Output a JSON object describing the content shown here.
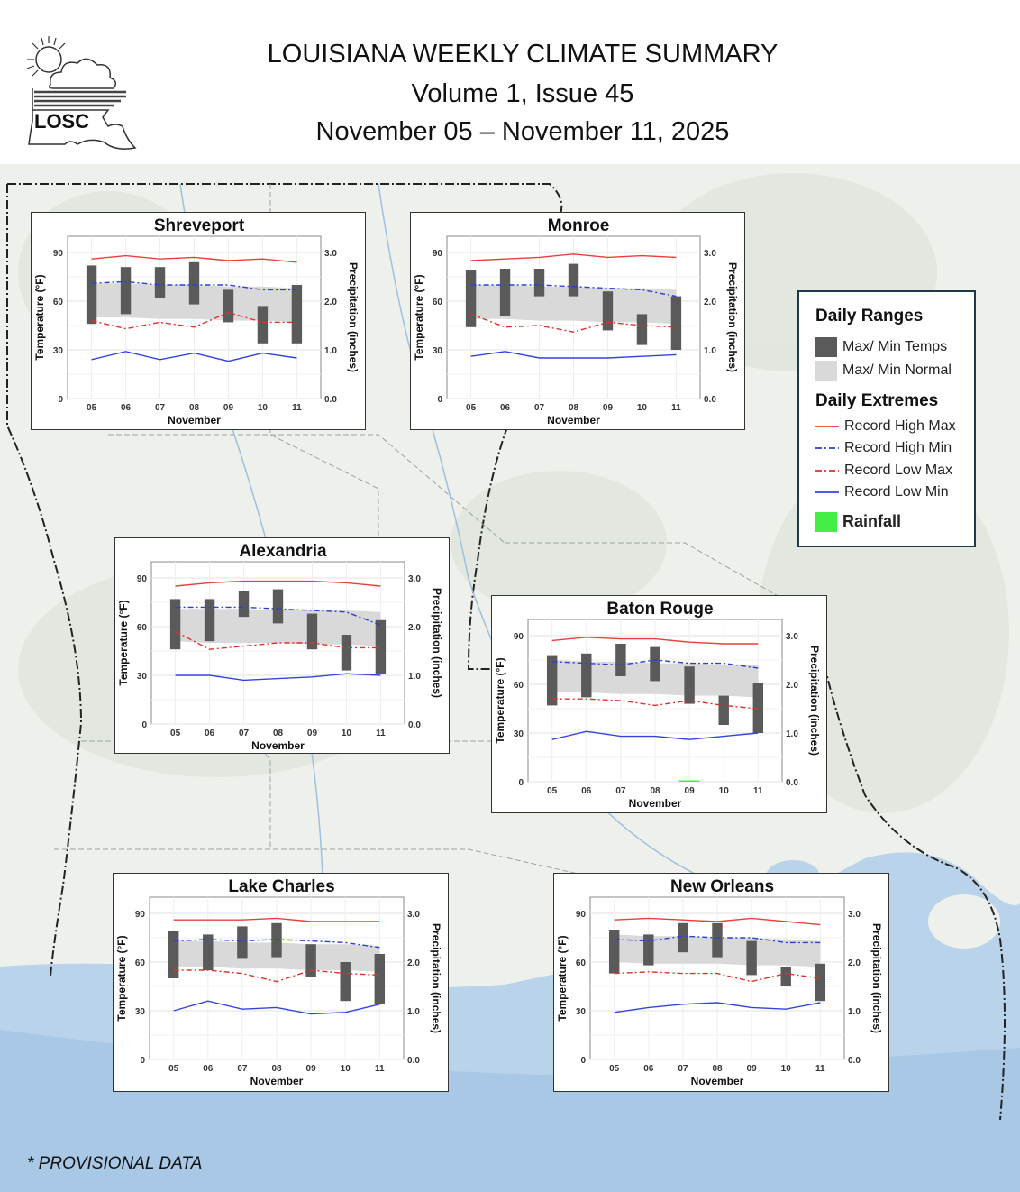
{
  "header": {
    "title": "LOUISIANA WEEKLY CLIMATE SUMMARY",
    "volume": "Volume 1, Issue 45",
    "dates": "November 05 – November 11, 2025",
    "logo_text": "LOSC"
  },
  "legend": {
    "ranges_heading": "Daily Ranges",
    "maxmin_temps": "Max/ Min Temps",
    "maxmin_normal": "Max/ Min Normal",
    "extremes_heading": "Daily Extremes",
    "record_high_max": "Record High Max",
    "record_high_min": "Record High Min",
    "record_low_max": "Record Low Max",
    "record_low_min": "Record Low Min",
    "rainfall": "Rainfall"
  },
  "colors": {
    "temp_bar": "#5a5a5a",
    "normal_band": "#d9d9d9",
    "record_high_max": "#e8403a",
    "record_high_min": "#2c3fd6",
    "record_low_max": "#e0302a",
    "record_low_min": "#3344dd",
    "rainfall": "#44ee44"
  },
  "note": "* PROVISIONAL DATA",
  "chart_data": [
    {
      "type": "bar",
      "title": "Shreveport",
      "xlabel": "November",
      "ylabel": "Temperature (°F)",
      "y2label": "Precipitation (inches)",
      "ylim": [
        0,
        100
      ],
      "y2lim": [
        0,
        3.33
      ],
      "yticks": [
        "0",
        "30",
        "60",
        "90"
      ],
      "y2ticks": [
        "0.0",
        "1.0",
        "2.0",
        "3.0"
      ],
      "categories": [
        "05",
        "06",
        "07",
        "08",
        "09",
        "10",
        "11"
      ],
      "max_temp": [
        82,
        81,
        81,
        84,
        67,
        57,
        70
      ],
      "min_temp": [
        46,
        52,
        62,
        58,
        47,
        34,
        34
      ],
      "normal_max": [
        71,
        71,
        70,
        70,
        69,
        69,
        68
      ],
      "normal_min": [
        50,
        50,
        49,
        49,
        48,
        48,
        47
      ],
      "record_high_max": [
        86,
        88,
        86,
        87,
        85,
        86,
        84
      ],
      "record_high_min": [
        71,
        72,
        70,
        70,
        70,
        67,
        67
      ],
      "record_low_max": [
        48,
        43,
        47,
        44,
        53,
        47,
        47
      ],
      "record_low_min": [
        24,
        29,
        24,
        28,
        23,
        28,
        25
      ],
      "precip": [
        0,
        0,
        0,
        0,
        0,
        0,
        0
      ]
    },
    {
      "type": "bar",
      "title": "Monroe",
      "xlabel": "November",
      "ylabel": "Temperature (°F)",
      "y2label": "Precipitation (inches)",
      "ylim": [
        0,
        100
      ],
      "y2lim": [
        0,
        3.33
      ],
      "yticks": [
        "0",
        "30",
        "60",
        "90"
      ],
      "y2ticks": [
        "0.0",
        "1.0",
        "2.0",
        "3.0"
      ],
      "categories": [
        "05",
        "06",
        "07",
        "08",
        "09",
        "10",
        "11"
      ],
      "max_temp": [
        79,
        80,
        80,
        83,
        66,
        52,
        63
      ],
      "min_temp": [
        44,
        51,
        63,
        63,
        42,
        33,
        30
      ],
      "normal_max": [
        70,
        70,
        69,
        69,
        68,
        68,
        67
      ],
      "normal_min": [
        49,
        49,
        48,
        48,
        47,
        47,
        46
      ],
      "record_high_max": [
        85,
        86,
        87,
        89,
        87,
        88,
        87
      ],
      "record_high_min": [
        70,
        70,
        70,
        69,
        68,
        67,
        63
      ],
      "record_low_max": [
        52,
        44,
        45,
        41,
        47,
        45,
        44
      ],
      "record_low_min": [
        26,
        29,
        25,
        25,
        25,
        26,
        27
      ],
      "precip": [
        0,
        0,
        0,
        0,
        0,
        0,
        0
      ]
    },
    {
      "type": "bar",
      "title": "Alexandria",
      "xlabel": "November",
      "ylabel": "Temperature (°F)",
      "y2label": "Precipitation (inches)",
      "ylim": [
        0,
        100
      ],
      "y2lim": [
        0,
        3.33
      ],
      "yticks": [
        "0",
        "30",
        "60",
        "90"
      ],
      "y2ticks": [
        "0.0",
        "1.0",
        "2.0",
        "3.0"
      ],
      "categories": [
        "05",
        "06",
        "07",
        "08",
        "09",
        "10",
        "11"
      ],
      "max_temp": [
        77,
        77,
        82,
        83,
        68,
        55,
        64
      ],
      "min_temp": [
        46,
        51,
        66,
        62,
        46,
        33,
        31
      ],
      "normal_max": [
        71,
        71,
        71,
        70,
        70,
        70,
        69
      ],
      "normal_min": [
        51,
        50,
        50,
        50,
        49,
        49,
        48
      ],
      "record_high_max": [
        85,
        87,
        88,
        88,
        88,
        87,
        85
      ],
      "record_high_min": [
        72,
        72,
        72,
        71,
        70,
        69,
        61
      ],
      "record_low_max": [
        57,
        46,
        48,
        50,
        50,
        47,
        47
      ],
      "record_low_min": [
        30,
        30,
        27,
        28,
        29,
        31,
        30
      ],
      "precip": [
        0,
        0,
        0,
        0,
        0,
        0,
        0
      ]
    },
    {
      "type": "bar",
      "title": "Baton Rouge",
      "xlabel": "November",
      "ylabel": "Temperature (°F)",
      "y2label": "Precipitation (inches)",
      "ylim": [
        0,
        100
      ],
      "y2lim": [
        0,
        3.33
      ],
      "yticks": [
        "0",
        "30",
        "60",
        "90"
      ],
      "y2ticks": [
        "0.0",
        "1.0",
        "2.0",
        "3.0"
      ],
      "categories": [
        "05",
        "06",
        "07",
        "08",
        "09",
        "10",
        "11"
      ],
      "max_temp": [
        78,
        79,
        85,
        83,
        71,
        53,
        61
      ],
      "min_temp": [
        47,
        52,
        65,
        62,
        48,
        35,
        30
      ],
      "normal_max": [
        75,
        74,
        74,
        73,
        73,
        72,
        72
      ],
      "normal_min": [
        55,
        55,
        54,
        54,
        53,
        53,
        52
      ],
      "record_high_max": [
        87,
        89,
        88,
        88,
        86,
        85,
        85
      ],
      "record_high_min": [
        74,
        73,
        72,
        75,
        73,
        73,
        70
      ],
      "record_low_max": [
        51,
        51,
        50,
        47,
        50,
        47,
        45
      ],
      "record_low_min": [
        26,
        31,
        28,
        28,
        26,
        28,
        30
      ],
      "precip": [
        0,
        0,
        0,
        0,
        0.01,
        0,
        0
      ]
    },
    {
      "type": "bar",
      "title": "Lake Charles",
      "xlabel": "November",
      "ylabel": "Temperature (°F)",
      "y2label": "Precipitation (inches)",
      "ylim": [
        0,
        100
      ],
      "y2lim": [
        0,
        3.33
      ],
      "yticks": [
        "0",
        "30",
        "60",
        "90"
      ],
      "y2ticks": [
        "0.0",
        "1.0",
        "2.0",
        "3.0"
      ],
      "categories": [
        "05",
        "06",
        "07",
        "08",
        "09",
        "10",
        "11"
      ],
      "max_temp": [
        79,
        77,
        82,
        84,
        71,
        60,
        65
      ],
      "min_temp": [
        50,
        55,
        62,
        63,
        51,
        36,
        34
      ],
      "normal_max": [
        73,
        73,
        72,
        72,
        71,
        71,
        70
      ],
      "normal_min": [
        57,
        57,
        56,
        56,
        55,
        55,
        54
      ],
      "record_high_max": [
        86,
        86,
        86,
        87,
        85,
        85,
        85
      ],
      "record_high_min": [
        73,
        74,
        73,
        74,
        73,
        72,
        69
      ],
      "record_low_max": [
        55,
        55,
        53,
        48,
        55,
        53,
        52
      ],
      "record_low_min": [
        30,
        36,
        31,
        32,
        28,
        29,
        34
      ],
      "precip": [
        0,
        0,
        0,
        0,
        0,
        0,
        0
      ]
    },
    {
      "type": "bar",
      "title": "New Orleans",
      "xlabel": "November",
      "ylabel": "Temperature (°F)",
      "y2label": "Precipitation (inches)",
      "ylim": [
        0,
        100
      ],
      "y2lim": [
        0,
        3.33
      ],
      "yticks": [
        "0",
        "30",
        "60",
        "90"
      ],
      "y2ticks": [
        "0.0",
        "1.0",
        "2.0",
        "3.0"
      ],
      "categories": [
        "05",
        "06",
        "07",
        "08",
        "09",
        "10",
        "11"
      ],
      "max_temp": [
        80,
        77,
        84,
        84,
        73,
        57,
        59
      ],
      "min_temp": [
        53,
        58,
        66,
        63,
        52,
        45,
        36
      ],
      "normal_max": [
        77,
        76,
        76,
        75,
        75,
        74,
        73
      ],
      "normal_min": [
        60,
        59,
        59,
        59,
        58,
        58,
        57
      ],
      "record_high_max": [
        86,
        87,
        86,
        85,
        87,
        85,
        83
      ],
      "record_high_min": [
        74,
        73,
        76,
        75,
        75,
        72,
        72
      ],
      "record_low_max": [
        53,
        54,
        53,
        53,
        48,
        53,
        50
      ],
      "record_low_min": [
        29,
        32,
        34,
        35,
        32,
        31,
        35
      ],
      "precip": [
        0,
        0,
        0,
        0,
        0,
        0,
        0
      ]
    }
  ]
}
